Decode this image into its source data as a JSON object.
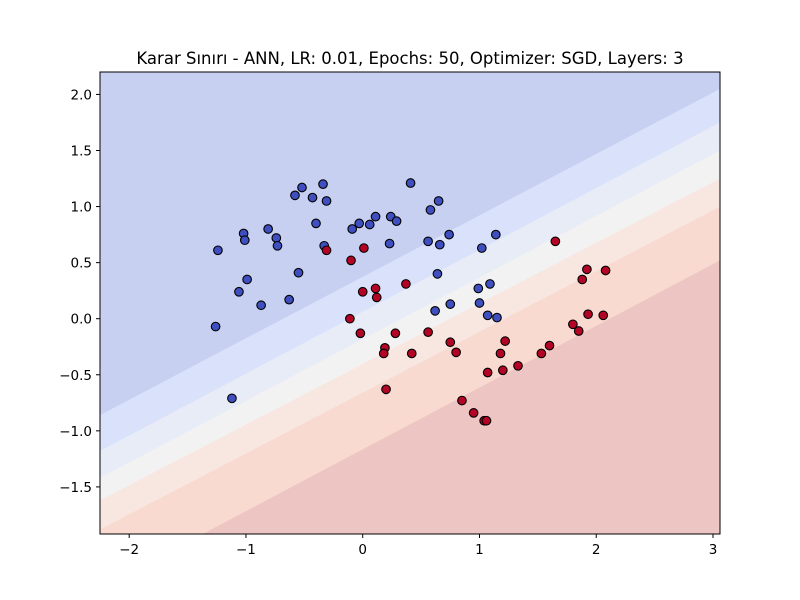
{
  "chart_data": {
    "type": "scatter",
    "title": "Karar Sınırı - ANN, LR: 0.01, Epochs: 50, Optimizer: SGD, Layers: 3",
    "xlabel": "",
    "ylabel": "",
    "xlim": [
      -2.25,
      3.06
    ],
    "ylim": [
      -1.92,
      2.2
    ],
    "xticks": [
      -2,
      -1,
      0,
      1,
      2,
      3
    ],
    "xtick_labels": [
      "−2",
      "−1",
      "0",
      "1",
      "2",
      "3"
    ],
    "yticks": [
      2.0,
      1.5,
      1.0,
      0.5,
      0.0,
      -0.5,
      -1.0,
      -1.5
    ],
    "ytick_labels": [
      "2.0",
      "1.5",
      "1.0",
      "0.5",
      "0.0",
      "−0.5",
      "−1.0",
      "−1.5"
    ],
    "grid": false,
    "decision_boundary": {
      "description": "contour bands of classifier output, blue (class 0) upper-left to red (class 1) lower-right",
      "bands": [
        {
          "level": 0,
          "color": "#c7d0f1",
          "line": [
            [
              -2.25,
              -0.86
            ],
            [
              3.06,
              2.05
            ]
          ]
        },
        {
          "level": 1,
          "color": "#dae2fb",
          "line": [
            [
              -2.25,
              -1.18
            ],
            [
              3.06,
              1.75
            ]
          ]
        },
        {
          "level": 2,
          "color": "#e8ecf7",
          "line": [
            [
              -2.25,
              -1.42
            ],
            [
              3.06,
              1.5
            ]
          ]
        },
        {
          "level": 3,
          "color": "#f2f2f2",
          "line": [
            [
              -2.25,
              -1.62
            ],
            [
              3.06,
              1.25
            ]
          ]
        },
        {
          "level": 4,
          "color": "#f8e7e1",
          "line": [
            [
              -2.25,
              -1.88
            ],
            [
              3.06,
              1.0
            ]
          ]
        },
        {
          "level": 5,
          "color": "#f8dad0",
          "line": [
            [
              -1.37,
              -1.92
            ],
            [
              3.06,
              0.52
            ]
          ]
        },
        {
          "level": 6,
          "color": "#edc5c3",
          "line": null
        }
      ]
    },
    "series": [
      {
        "class": 0,
        "color": "#3f4fbf",
        "points": [
          [
            -1.24,
            0.61
          ],
          [
            -1.02,
            0.76
          ],
          [
            -1.01,
            0.7
          ],
          [
            -0.81,
            0.8
          ],
          [
            -0.74,
            0.72
          ],
          [
            -0.73,
            0.65
          ],
          [
            -0.99,
            0.35
          ],
          [
            -1.06,
            0.24
          ],
          [
            -0.87,
            0.12
          ],
          [
            -1.26,
            -0.07
          ],
          [
            -1.12,
            -0.71
          ],
          [
            -0.58,
            1.1
          ],
          [
            -0.52,
            1.17
          ],
          [
            -0.43,
            1.08
          ],
          [
            -0.34,
            1.2
          ],
          [
            -0.31,
            1.05
          ],
          [
            -0.4,
            0.85
          ],
          [
            -0.33,
            0.65
          ],
          [
            -0.55,
            0.41
          ],
          [
            -0.63,
            0.17
          ],
          [
            -0.09,
            0.8
          ],
          [
            -0.03,
            0.85
          ],
          [
            0.06,
            0.84
          ],
          [
            0.11,
            0.91
          ],
          [
            0.24,
            0.91
          ],
          [
            0.29,
            0.87
          ],
          [
            0.23,
            0.67
          ],
          [
            0.41,
            1.21
          ],
          [
            0.58,
            0.97
          ],
          [
            0.65,
            1.05
          ],
          [
            0.56,
            0.69
          ],
          [
            0.66,
            0.66
          ],
          [
            0.74,
            0.75
          ],
          [
            0.64,
            0.4
          ],
          [
            0.62,
            0.07
          ],
          [
            0.75,
            0.13
          ],
          [
            1.02,
            0.63
          ],
          [
            1.14,
            0.75
          ],
          [
            0.99,
            0.27
          ],
          [
            1.09,
            0.31
          ],
          [
            1.0,
            0.14
          ],
          [
            1.07,
            0.03
          ],
          [
            1.15,
            0.01
          ]
        ]
      },
      {
        "class": 1,
        "color": "#b40426",
        "points": [
          [
            -0.31,
            0.61
          ],
          [
            0.01,
            0.63
          ],
          [
            -0.1,
            0.52
          ],
          [
            0.0,
            0.24
          ],
          [
            0.11,
            0.27
          ],
          [
            0.12,
            0.19
          ],
          [
            0.37,
            0.31
          ],
          [
            -0.11,
            0.0
          ],
          [
            -0.02,
            -0.13
          ],
          [
            0.28,
            -0.13
          ],
          [
            0.56,
            -0.12
          ],
          [
            0.19,
            -0.26
          ],
          [
            0.18,
            -0.31
          ],
          [
            0.42,
            -0.31
          ],
          [
            0.75,
            -0.21
          ],
          [
            0.8,
            -0.3
          ],
          [
            0.2,
            -0.63
          ],
          [
            1.65,
            0.69
          ],
          [
            1.92,
            0.44
          ],
          [
            2.08,
            0.43
          ],
          [
            1.88,
            0.35
          ],
          [
            1.93,
            0.04
          ],
          [
            2.06,
            0.03
          ],
          [
            1.8,
            -0.05
          ],
          [
            1.85,
            -0.11
          ],
          [
            1.22,
            -0.2
          ],
          [
            1.18,
            -0.31
          ],
          [
            1.6,
            -0.24
          ],
          [
            1.53,
            -0.31
          ],
          [
            1.33,
            -0.42
          ],
          [
            1.07,
            -0.48
          ],
          [
            1.2,
            -0.46
          ],
          [
            0.85,
            -0.73
          ],
          [
            0.95,
            -0.84
          ],
          [
            1.04,
            -0.91
          ],
          [
            1.06,
            -0.91
          ]
        ]
      }
    ]
  }
}
